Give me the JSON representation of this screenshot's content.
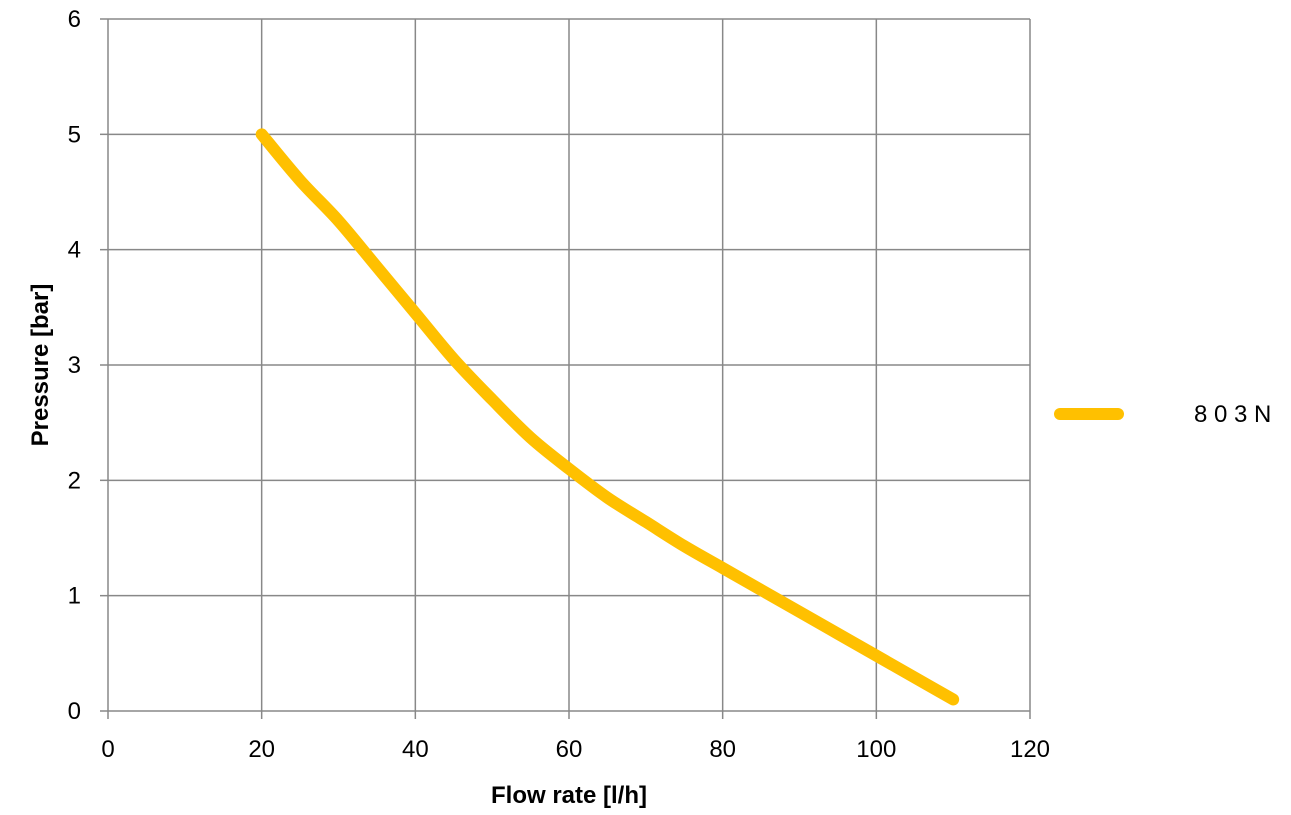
{
  "chart_data": {
    "type": "line",
    "title": "",
    "xlabel": "Flow rate [l/h]",
    "ylabel": "Pressure [bar]",
    "xlim": [
      0,
      120
    ],
    "ylim": [
      0,
      6
    ],
    "x_ticks": [
      "0",
      "20",
      "40",
      "60",
      "80",
      "100",
      "120"
    ],
    "y_ticks": [
      "0",
      "1",
      "2",
      "3",
      "4",
      "5",
      "6"
    ],
    "grid": true,
    "legend_position": "right",
    "series": [
      {
        "name": "8 0 3 N",
        "color": "#FFC000",
        "x": [
          20,
          25,
          30,
          35,
          40,
          45,
          50,
          55,
          60,
          65,
          70,
          75,
          80,
          85,
          90,
          95,
          100,
          105,
          110
        ],
        "y": [
          5.0,
          4.6,
          4.25,
          3.85,
          3.45,
          3.05,
          2.7,
          2.37,
          2.1,
          1.85,
          1.64,
          1.43,
          1.24,
          1.05,
          0.86,
          0.67,
          0.48,
          0.29,
          0.1
        ]
      }
    ]
  }
}
